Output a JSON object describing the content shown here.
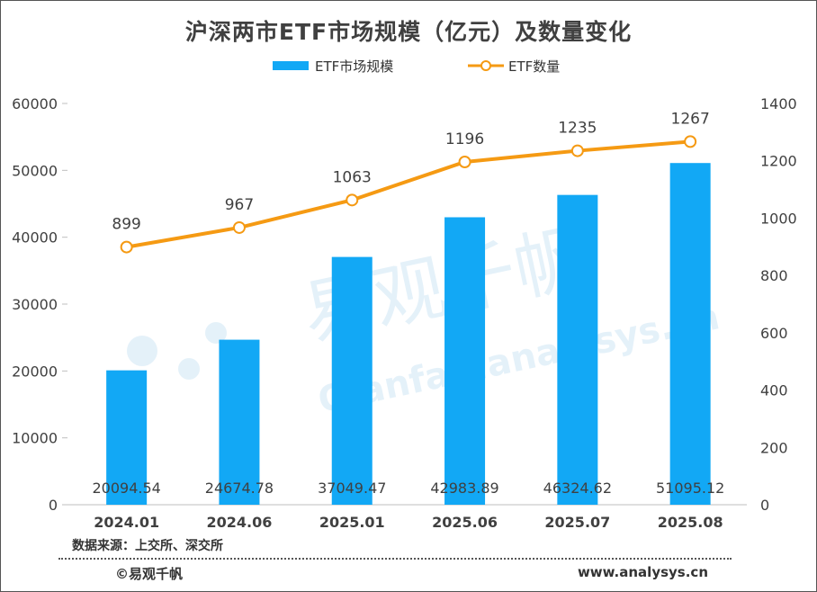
{
  "chart_data": {
    "type": "bar+line",
    "title": "沪深两市ETF市场规模（亿元）及数量变化",
    "categories": [
      "2024.01",
      "2024.06",
      "2025.01",
      "2025.06",
      "2025.07",
      "2025.08"
    ],
    "series": [
      {
        "name": "ETF市场规模",
        "type": "bar",
        "axis": "left",
        "values": [
          20094.54,
          24674.78,
          37049.47,
          42983.89,
          46324.62,
          51095.12
        ],
        "labels": [
          "20094.54",
          "24674.78",
          "37049.47",
          "42983.89",
          "46324.62",
          "51095.12"
        ],
        "color": "#12A8F5"
      },
      {
        "name": "ETF数量",
        "type": "line",
        "axis": "right",
        "values": [
          899,
          967,
          1063,
          1196,
          1235,
          1267
        ],
        "labels": [
          "899",
          "967",
          "1063",
          "1196",
          "1235",
          "1267"
        ],
        "color": "#F59A13"
      }
    ],
    "y_left": {
      "min": 0,
      "max": 60000,
      "ticks": [
        "0",
        "10000",
        "20000",
        "30000",
        "40000",
        "50000",
        "60000"
      ]
    },
    "y_right": {
      "min": 0,
      "max": 1400,
      "ticks": [
        "0",
        "200",
        "400",
        "600",
        "800",
        "1000",
        "1200",
        "1400"
      ]
    },
    "legend_position": "top-center",
    "grid": false
  },
  "footer": {
    "source": "数据来源：上交所、深交所",
    "brand": "©易观千帆",
    "site": "www.analysys.cn"
  },
  "watermark": {
    "cn": "易观千帆",
    "en": "Qianfan.analysys.cn"
  }
}
